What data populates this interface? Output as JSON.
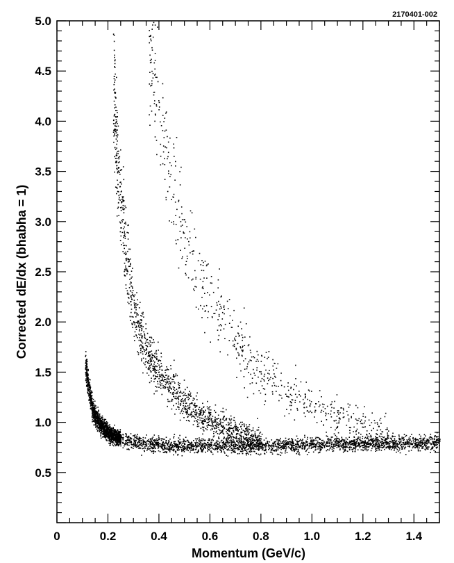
{
  "figure_tag": "2170401-002",
  "chart_data": {
    "type": "scatter",
    "xlabel": "Momentum (GeV/c)",
    "ylabel": "Corrected dE/dx (bhabha = 1)",
    "xlim": [
      0,
      1.5
    ],
    "ylim": [
      0,
      5.0
    ],
    "x_ticks": [
      {
        "value": 0,
        "label": "0"
      },
      {
        "value": 0.2,
        "label": "0.2"
      },
      {
        "value": 0.4,
        "label": "0.4"
      },
      {
        "value": 0.6,
        "label": "0.6"
      },
      {
        "value": 0.8,
        "label": "0.8"
      },
      {
        "value": 1.0,
        "label": "1.0"
      },
      {
        "value": 1.2,
        "label": "1.2"
      },
      {
        "value": 1.4,
        "label": "1.4"
      }
    ],
    "y_ticks": [
      {
        "value": 0.5,
        "label": "0.5"
      },
      {
        "value": 1.0,
        "label": "1.0"
      },
      {
        "value": 1.5,
        "label": "1.5"
      },
      {
        "value": 2.0,
        "label": "2.0"
      },
      {
        "value": 2.5,
        "label": "2.5"
      },
      {
        "value": 3.0,
        "label": "3.0"
      },
      {
        "value": 3.5,
        "label": "3.5"
      },
      {
        "value": 4.0,
        "label": "4.0"
      },
      {
        "value": 4.5,
        "label": "4.5"
      },
      {
        "value": 5.0,
        "label": "5.0"
      }
    ],
    "grid": false,
    "marker_color": "#000000",
    "series": [
      {
        "x": [
          0.11,
          0.12,
          0.13,
          0.14,
          0.16,
          0.18,
          0.2,
          0.22,
          0.25,
          0.28,
          0.3,
          0.35,
          0.4,
          0.45,
          0.5,
          0.55,
          0.6,
          0.7,
          0.8,
          0.9,
          1.0,
          1.1,
          1.2,
          1.3,
          1.4,
          1.5
        ],
        "y": [
          1.6,
          1.4,
          1.25,
          1.12,
          1.02,
          0.95,
          0.9,
          0.87,
          0.84,
          0.82,
          0.81,
          0.79,
          0.78,
          0.77,
          0.77,
          0.77,
          0.77,
          0.77,
          0.77,
          0.78,
          0.78,
          0.79,
          0.79,
          0.8,
          0.8,
          0.81
        ]
      },
      {
        "x": [
          0.22,
          0.23,
          0.24,
          0.25,
          0.27,
          0.3,
          0.33,
          0.36,
          0.4,
          0.45,
          0.5,
          0.55,
          0.6,
          0.65,
          0.7,
          0.75,
          0.8
        ],
        "y": [
          4.3,
          3.9,
          3.5,
          3.15,
          2.65,
          2.15,
          1.85,
          1.65,
          1.5,
          1.33,
          1.2,
          1.1,
          1.02,
          0.96,
          0.92,
          0.88,
          0.85
        ]
      },
      {
        "x": [
          0.36,
          0.38,
          0.4,
          0.42,
          0.45,
          0.48,
          0.5,
          0.55,
          0.6,
          0.65,
          0.7,
          0.75,
          0.8,
          0.85,
          0.9,
          0.95,
          1.0,
          1.05,
          1.1,
          1.2,
          1.3
        ],
        "y": [
          4.8,
          4.5,
          4.1,
          3.8,
          3.35,
          3.05,
          2.85,
          2.5,
          2.2,
          2.0,
          1.8,
          1.65,
          1.52,
          1.42,
          1.33,
          1.25,
          1.18,
          1.12,
          1.06,
          0.98,
          0.92
        ]
      }
    ]
  }
}
